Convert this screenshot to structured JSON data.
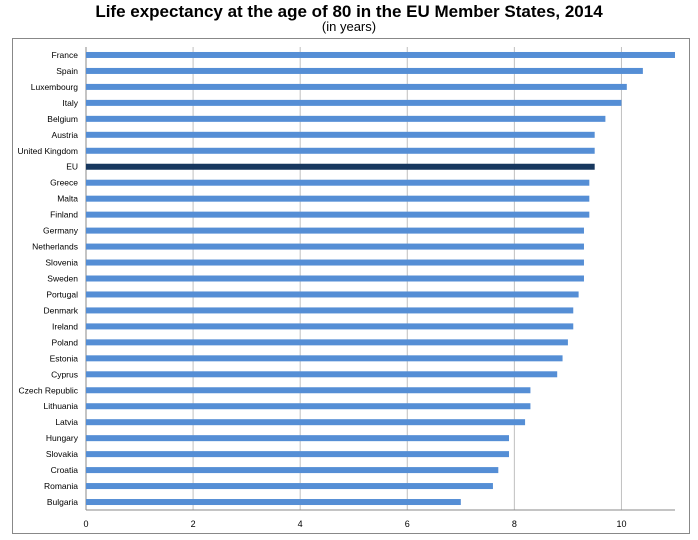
{
  "chart_data": {
    "type": "bar",
    "orientation": "horizontal",
    "title": "Life expectancy at the age of 80 in the EU Member States, 2014",
    "subtitle": "(in years)",
    "xlabel": "",
    "ylabel": "",
    "xlim": [
      0,
      11
    ],
    "x_ticks": [
      0,
      2,
      4,
      6,
      8,
      10
    ],
    "grid": true,
    "categories": [
      "France",
      "Spain",
      "Luxembourg",
      "Italy",
      "Belgium",
      "Austria",
      "United Kingdom",
      "EU",
      "Greece",
      "Malta",
      "Finland",
      "Germany",
      "Netherlands",
      "Slovenia",
      "Sweden",
      "Portugal",
      "Denmark",
      "Ireland",
      "Poland",
      "Estonia",
      "Cyprus",
      "Czech Republic",
      "Lithuania",
      "Latvia",
      "Hungary",
      "Slovakia",
      "Croatia",
      "Romania",
      "Bulgaria"
    ],
    "values": [
      11.0,
      10.4,
      10.1,
      10.0,
      9.7,
      9.5,
      9.5,
      9.5,
      9.4,
      9.4,
      9.4,
      9.3,
      9.3,
      9.3,
      9.3,
      9.2,
      9.1,
      9.1,
      9.0,
      8.9,
      8.8,
      8.3,
      8.3,
      8.2,
      7.9,
      7.9,
      7.7,
      7.6,
      7.0
    ],
    "highlight": "EU",
    "colors": {
      "bar": "#558ed5",
      "highlight": "#17375e",
      "grid": "#c0c0c0"
    }
  }
}
